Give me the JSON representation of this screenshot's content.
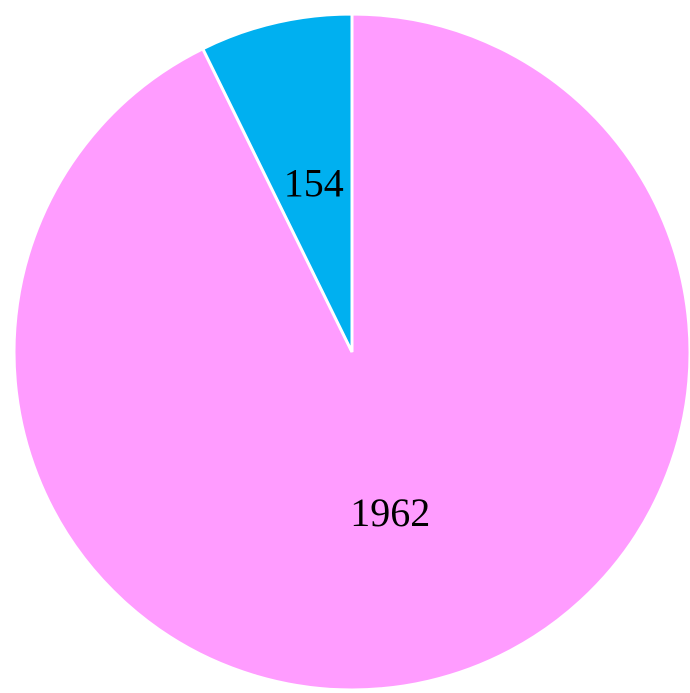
{
  "chart_data": {
    "type": "pie",
    "categories": [
      null,
      null
    ],
    "values": [
      1962,
      154
    ],
    "colors": [
      "#ff9cff",
      "#00b0f0"
    ]
  }
}
